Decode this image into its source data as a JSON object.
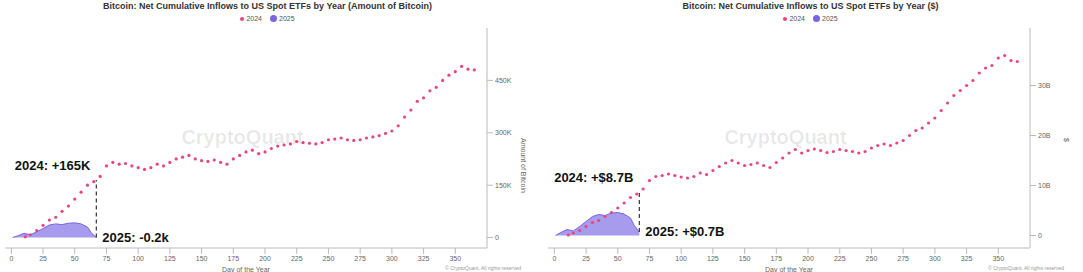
{
  "chart_data": [
    {
      "type": "scatter",
      "title": "Bitcoin: Net Cumulative Inflows to US Spot ETFs by Year (Amount of Bitcoin)",
      "x_label": "Day of the Year",
      "y_label": "Amount of Bitcoin",
      "xlim": [
        -5,
        375
      ],
      "xticks": [
        0,
        25,
        50,
        75,
        100,
        125,
        150,
        175,
        200,
        225,
        250,
        275,
        300,
        325,
        350
      ],
      "ylim": [
        -30,
        600
      ],
      "yticks": [
        0,
        {
          "value": 150,
          "label": "150K"
        },
        {
          "value": 300,
          "label": "300K"
        },
        {
          "value": 450,
          "label": "450K"
        }
      ],
      "grid": false,
      "legend": "top",
      "series": [
        {
          "name": "2024",
          "type": "scatter",
          "marker": "circle",
          "color": "#e8467c",
          "x": [
            11,
            15,
            20,
            25,
            30,
            35,
            40,
            45,
            50,
            55,
            60,
            65,
            70,
            75,
            80,
            85,
            90,
            95,
            100,
            105,
            110,
            115,
            120,
            125,
            130,
            135,
            140,
            145,
            150,
            155,
            160,
            165,
            170,
            175,
            180,
            185,
            190,
            195,
            200,
            205,
            210,
            215,
            220,
            225,
            230,
            235,
            240,
            245,
            250,
            255,
            260,
            265,
            270,
            275,
            280,
            285,
            290,
            295,
            300,
            305,
            310,
            315,
            320,
            325,
            330,
            335,
            340,
            345,
            350,
            355,
            360,
            365
          ],
          "values": [
            2,
            8,
            20,
            35,
            50,
            58,
            75,
            90,
            110,
            130,
            150,
            160,
            175,
            205,
            215,
            210,
            212,
            205,
            200,
            195,
            200,
            210,
            205,
            215,
            225,
            230,
            235,
            225,
            220,
            218,
            222,
            215,
            210,
            225,
            235,
            245,
            250,
            240,
            245,
            255,
            262,
            265,
            268,
            275,
            272,
            270,
            268,
            272,
            280,
            282,
            285,
            280,
            278,
            280,
            285,
            288,
            292,
            298,
            305,
            320,
            345,
            365,
            390,
            400,
            420,
            430,
            450,
            465,
            475,
            490,
            482,
            480
          ]
        },
        {
          "name": "2025",
          "type": "area",
          "color": "#7765e3",
          "x": [
            1,
            5,
            10,
            15,
            20,
            25,
            30,
            35,
            40,
            45,
            50,
            55,
            60,
            63,
            67
          ],
          "values": [
            0,
            5,
            12,
            8,
            16,
            26,
            36,
            39,
            37,
            41,
            42,
            39,
            30,
            14,
            -0.2
          ]
        }
      ],
      "annotations": [
        {
          "text": "2024: +165K",
          "x": 67,
          "y": 165
        },
        {
          "text": "2025: -0.2k",
          "x": 67,
          "y": -0.2
        }
      ],
      "watermark": "CryptoQuant",
      "credit": "© CryptoQuant. All rights reserved"
    },
    {
      "type": "scatter",
      "title": "Bitcoin: Net Cumulative Inflows to US Spot ETFs by Year ($)",
      "x_label": "Day of the Year",
      "y_label": "$",
      "xlim": [
        -5,
        375
      ],
      "xticks": [
        0,
        25,
        50,
        75,
        100,
        125,
        150,
        175,
        200,
        225,
        250,
        275,
        300,
        325,
        350
      ],
      "ylim": [
        -2.5,
        41.5
      ],
      "yticks": [
        0,
        {
          "value": 10,
          "label": "10B"
        },
        {
          "value": 20,
          "label": "20B"
        },
        {
          "value": 30,
          "label": "30B"
        }
      ],
      "grid": false,
      "legend": "top",
      "series": [
        {
          "name": "2024",
          "type": "scatter",
          "marker": "circle",
          "color": "#e8467c",
          "x": [
            11,
            15,
            20,
            25,
            30,
            35,
            40,
            45,
            50,
            55,
            60,
            65,
            70,
            75,
            80,
            85,
            90,
            95,
            100,
            105,
            110,
            115,
            120,
            125,
            130,
            135,
            140,
            145,
            150,
            155,
            160,
            165,
            170,
            175,
            180,
            185,
            190,
            195,
            200,
            205,
            210,
            215,
            220,
            225,
            230,
            235,
            240,
            245,
            250,
            255,
            260,
            265,
            270,
            275,
            280,
            285,
            290,
            295,
            300,
            305,
            310,
            315,
            320,
            325,
            330,
            335,
            340,
            345,
            350,
            355,
            360,
            365
          ],
          "values": [
            0.1,
            0.5,
            1.0,
            1.8,
            2.6,
            3.0,
            3.8,
            4.6,
            5.5,
            6.5,
            7.6,
            8.3,
            9.3,
            11.0,
            11.8,
            12.0,
            12.3,
            12.0,
            11.7,
            11.5,
            11.8,
            12.5,
            12.2,
            13.0,
            13.8,
            14.5,
            15.0,
            14.5,
            14.0,
            14.2,
            14.5,
            14.0,
            13.6,
            14.6,
            15.5,
            16.5,
            17.2,
            16.5,
            17.0,
            17.3,
            17.0,
            16.6,
            16.8,
            17.2,
            17.0,
            16.8,
            16.5,
            16.8,
            17.5,
            18.0,
            18.3,
            18.0,
            18.5,
            19.0,
            20.0,
            21.0,
            21.5,
            22.5,
            23.5,
            25.0,
            26.5,
            28.0,
            29.0,
            30.0,
            31.0,
            32.5,
            33.5,
            34.0,
            35.5,
            36.0,
            35.0,
            34.8
          ]
        },
        {
          "name": "2025",
          "type": "area",
          "color": "#7765e3",
          "x": [
            1,
            5,
            10,
            15,
            20,
            25,
            30,
            35,
            40,
            45,
            50,
            55,
            60,
            63,
            67
          ],
          "values": [
            0,
            0.6,
            1.2,
            0.9,
            1.8,
            2.8,
            3.8,
            4.2,
            4.0,
            4.5,
            4.6,
            4.3,
            3.5,
            2.0,
            0.7
          ]
        }
      ],
      "annotations": [
        {
          "text": "2024: +$8.7B",
          "x": 67,
          "y": 8.7
        },
        {
          "text": "2025: +$0.7B",
          "x": 67,
          "y": 0.7
        }
      ],
      "watermark": "CryptoQuant",
      "credit": "© CryptoQuant. All rights reserved"
    }
  ]
}
